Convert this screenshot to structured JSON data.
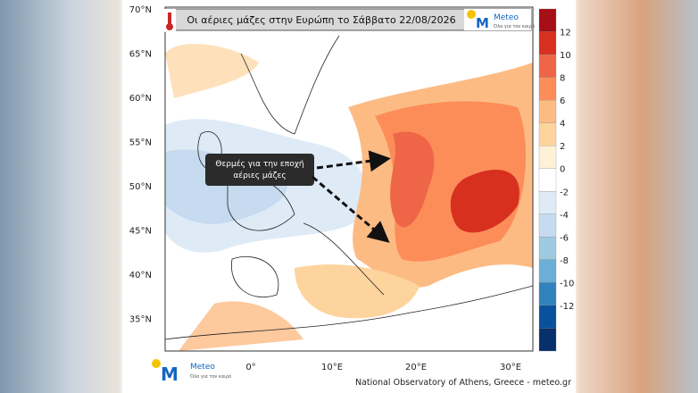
{
  "header": {
    "title": "Οι αέριες μάζες στην Ευρώπη το Σάββατο 22/08/2026",
    "logo": "Meteo",
    "logo_tagline": "Όλα για τον καιρό"
  },
  "map": {
    "lat_labels": [
      "70°N",
      "65°N",
      "60°N",
      "55°N",
      "50°N",
      "45°N",
      "40°N",
      "35°N"
    ],
    "lon_labels": [
      "0°",
      "10°E",
      "20°E",
      "30°E"
    ]
  },
  "annotation": {
    "lines": [
      "Θερμές για την εποχή",
      "αέριες μάζες"
    ]
  },
  "colorbar": {
    "ticks": [
      12,
      10,
      8,
      6,
      4,
      2,
      0,
      -2,
      -4,
      -6,
      -8,
      -10,
      -12
    ]
  },
  "footer": {
    "logo": "Meteo",
    "logo_tagline": "Όλα για τον καιρό",
    "credit": "National Observatory of Athens, Greece - meteo.gr"
  }
}
